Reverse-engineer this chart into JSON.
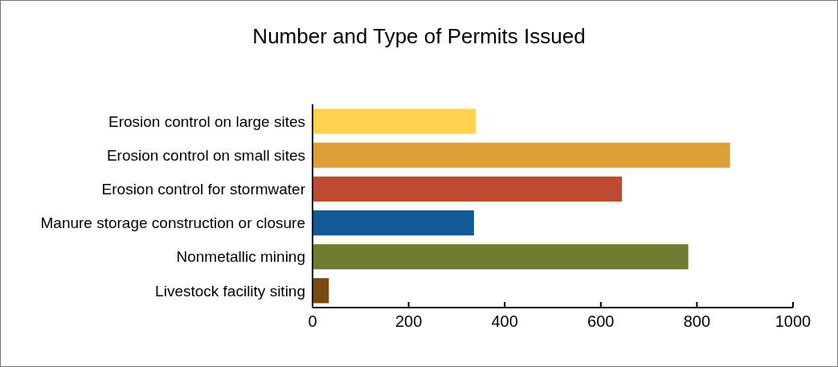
{
  "chart_data": {
    "type": "bar",
    "orientation": "horizontal",
    "title": "Number and Type of Permits Issued",
    "categories": [
      "Erosion control on large sites",
      "Erosion control on small sites",
      "Erosion control for stormwater",
      "Manure storage construction or closure",
      "Nonmetallic mining",
      "Livestock facility siting"
    ],
    "values": [
      340,
      869,
      644,
      336,
      782,
      34
    ],
    "colors": [
      "#fed24e",
      "#dc9e37",
      "#bd4a31",
      "#135998",
      "#717b32",
      "#7a4b11"
    ],
    "xlim": [
      0,
      1000
    ],
    "xticks": [
      0,
      200,
      400,
      600,
      800,
      1000
    ],
    "grid": false
  }
}
